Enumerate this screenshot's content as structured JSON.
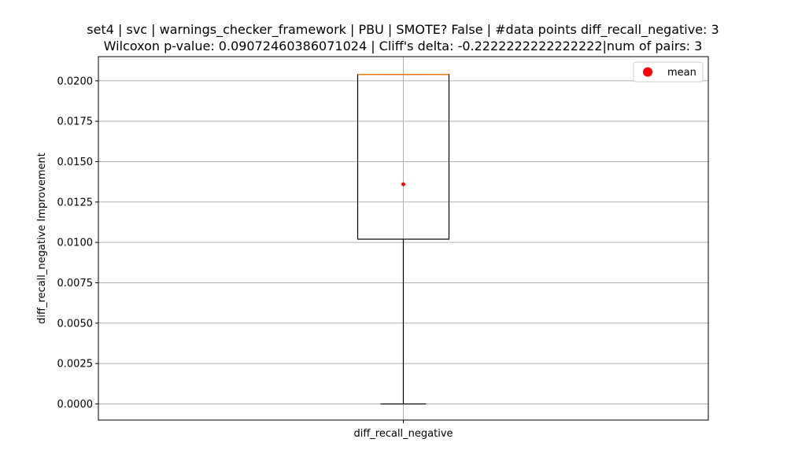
{
  "chart_data": {
    "type": "box",
    "title_lines": [
      "set4 | svc | warnings_checker_framework | PBU | SMOTE? False | #data points diff_recall_negative: 3",
      "Wilcoxon p-value: 0.09072460386071024 | Cliff's delta: -0.2222222222222222|num of pairs: 3"
    ],
    "xlabel": "",
    "ylabel": "diff_recall_negative Improvement",
    "categories": [
      "diff_recall_negative"
    ],
    "boxes": [
      {
        "name": "diff_recall_negative",
        "whisker_low": 0.0,
        "q1": 0.0102,
        "median": 0.0204,
        "q3": 0.0204,
        "whisker_high": 0.0204,
        "mean": 0.0136
      }
    ],
    "ylim": [
      -0.001,
      0.0215
    ],
    "yticks": [
      "0.0000",
      "0.0025",
      "0.0050",
      "0.0075",
      "0.0100",
      "0.0125",
      "0.0150",
      "0.0175",
      "0.0200"
    ],
    "ytick_values": [
      0.0,
      0.0025,
      0.005,
      0.0075,
      0.01,
      0.0125,
      0.015,
      0.0175,
      0.02
    ],
    "grid": true,
    "legend": {
      "placement": "top-right",
      "entries": [
        {
          "label": "mean",
          "marker": "circle",
          "color": "#ff0000"
        }
      ]
    },
    "colors": {
      "box": "#000000",
      "median": "#ff7f0e",
      "mean": "#ff0000",
      "grid": "#b0b0b0"
    }
  }
}
